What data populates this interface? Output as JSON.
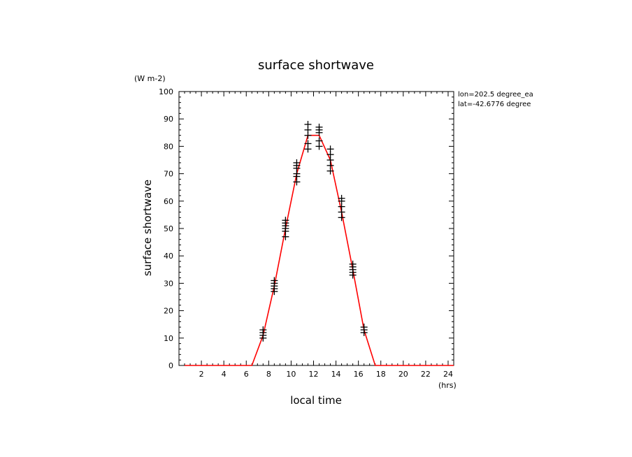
{
  "chart_data": {
    "type": "line",
    "title": "surface shortwave",
    "xlabel": "local time",
    "ylabel": "surface shortwave",
    "x_unit": "(hrs)",
    "y_unit": "(W m-2)",
    "xlim": [
      0,
      24.5
    ],
    "ylim": [
      0,
      100
    ],
    "x_ticks": [
      2,
      4,
      6,
      8,
      10,
      12,
      14,
      16,
      18,
      20,
      22,
      24
    ],
    "y_ticks": [
      0,
      10,
      20,
      30,
      40,
      50,
      60,
      70,
      80,
      90,
      100
    ],
    "annotations": [
      "lon=202.5 degree_ea",
      "lat=-42.6776 degree"
    ],
    "grid": false,
    "colors": {
      "line": "#ff0000",
      "markers": "#000000"
    },
    "series": [
      {
        "style": "line",
        "x": [
          0.5,
          1.5,
          2.5,
          3.5,
          4.5,
          5.5,
          6.5,
          7.5,
          8.5,
          9.5,
          10.5,
          11.5,
          12.5,
          13.5,
          14.5,
          15.5,
          16.5,
          17.5,
          18.5,
          19.5,
          20.5,
          21.5,
          22.5,
          23.5,
          24.5
        ],
        "y": [
          0,
          0,
          0,
          0,
          0,
          0,
          0,
          11,
          29,
          50,
          70,
          84,
          84,
          75,
          56,
          35,
          13,
          0,
          0,
          0,
          0,
          0,
          0,
          0,
          0
        ]
      },
      {
        "style": "markers",
        "marker": "+",
        "points": [
          [
            7.5,
            10
          ],
          [
            7.5,
            11
          ],
          [
            7.5,
            12
          ],
          [
            7.5,
            13
          ],
          [
            8.5,
            27
          ],
          [
            8.5,
            28
          ],
          [
            8.5,
            29
          ],
          [
            8.5,
            30
          ],
          [
            8.5,
            31
          ],
          [
            9.5,
            47
          ],
          [
            9.5,
            49
          ],
          [
            9.5,
            50
          ],
          [
            9.5,
            51
          ],
          [
            9.5,
            52
          ],
          [
            9.5,
            53
          ],
          [
            10.5,
            67
          ],
          [
            10.5,
            69
          ],
          [
            10.5,
            70
          ],
          [
            10.5,
            72
          ],
          [
            10.5,
            73
          ],
          [
            10.5,
            74
          ],
          [
            11.5,
            79
          ],
          [
            11.5,
            81
          ],
          [
            11.5,
            84
          ],
          [
            11.5,
            86
          ],
          [
            11.5,
            88
          ],
          [
            12.5,
            80
          ],
          [
            12.5,
            82
          ],
          [
            12.5,
            85
          ],
          [
            12.5,
            86
          ],
          [
            12.5,
            87
          ],
          [
            13.5,
            71
          ],
          [
            13.5,
            73
          ],
          [
            13.5,
            75
          ],
          [
            13.5,
            77
          ],
          [
            13.5,
            79
          ],
          [
            14.5,
            54
          ],
          [
            14.5,
            56
          ],
          [
            14.5,
            58
          ],
          [
            14.5,
            60
          ],
          [
            14.5,
            61
          ],
          [
            15.5,
            33
          ],
          [
            15.5,
            34
          ],
          [
            15.5,
            35
          ],
          [
            15.5,
            36
          ],
          [
            15.5,
            37
          ],
          [
            16.5,
            12
          ],
          [
            16.5,
            13
          ],
          [
            16.5,
            14
          ]
        ]
      }
    ]
  }
}
